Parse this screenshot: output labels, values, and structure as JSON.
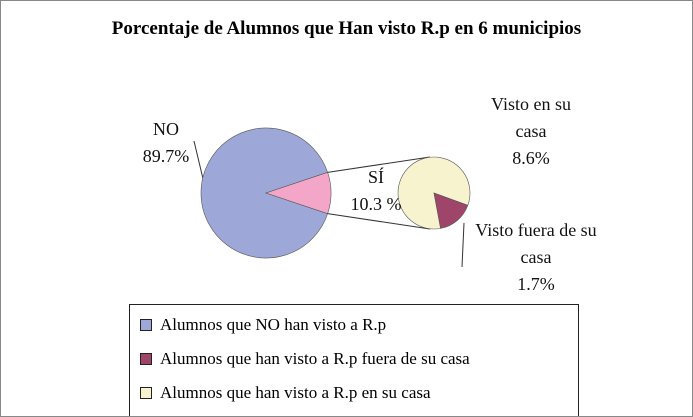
{
  "chart_data": {
    "type": "pie_of_pie",
    "title": "Porcentaje de Alumnos que Han visto R.p en 6 municipios",
    "categories": [
      "NO",
      "SÍ"
    ],
    "values": [
      89.7,
      10.3
    ],
    "value_labels": [
      "89.7%",
      "10.3 %"
    ],
    "colors": [
      "#9ea8d8",
      "#f4a6c8"
    ],
    "secondary": {
      "categories": [
        "Visto en su casa",
        "Visto fuera de su casa"
      ],
      "values": [
        8.6,
        1.7
      ],
      "value_labels": [
        "8.6%",
        "1.7%"
      ],
      "colors": [
        "#f7f3cf",
        "#a0456a"
      ]
    },
    "legend": [
      {
        "name": "Alumnos que NO han visto a R.p",
        "color": "#9ea8d8"
      },
      {
        "name": "Alumnos que han visto a R.p fuera de su casa",
        "color": "#a0456a"
      },
      {
        "name": "Alumnos que han visto a R.p en su casa",
        "color": "#f7f3cf"
      }
    ]
  }
}
